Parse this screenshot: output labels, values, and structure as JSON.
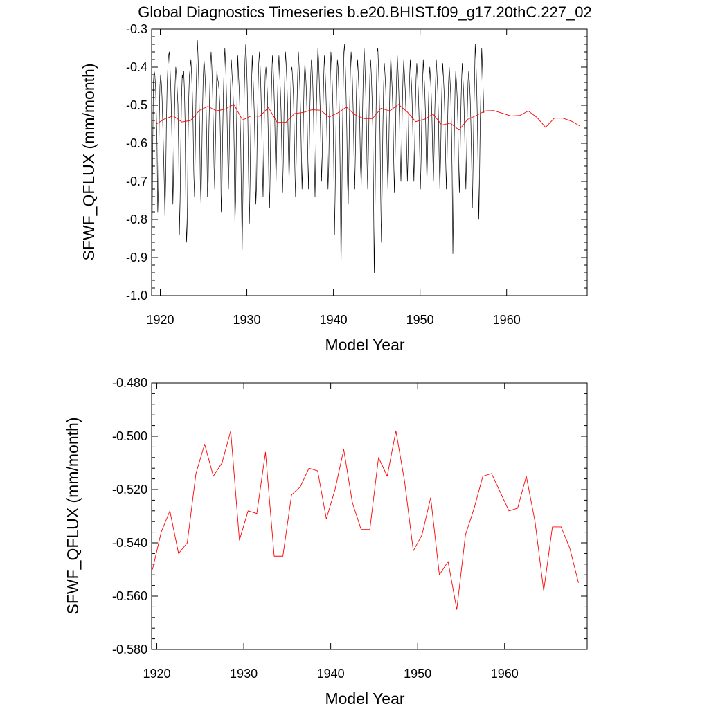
{
  "title": "Global Diagnostics Timeseries b.e20.BHIST.f09_g17.20thC.227_02",
  "chart_data": [
    {
      "type": "line",
      "xlabel": "Model Year",
      "ylabel": "SFWF_QFLUX (mm/month)",
      "xlim": [
        1919.0,
        1969.3
      ],
      "ylim": [
        -1.0,
        -0.3
      ],
      "xticks": [
        "1920",
        "1930",
        "1940",
        "1950",
        "1960"
      ],
      "yticks": [
        "-1.0",
        "-0.9",
        "-0.8",
        "-0.7",
        "-0.6",
        "-0.5",
        "-0.4",
        "-0.3"
      ],
      "grid": false,
      "series": [
        {
          "color": "#000000",
          "style": "monthly",
          "x_start": 1919.04,
          "x_step": 0.08333,
          "values": [
            -0.86,
            -0.62,
            -0.44,
            -0.41,
            -0.42,
            -0.45,
            -0.52,
            -0.6,
            -0.78,
            -0.72,
            -0.55,
            -0.45,
            -0.42,
            -0.44,
            -0.48,
            -0.55,
            -0.62,
            -0.7,
            -0.79,
            -0.7,
            -0.55,
            -0.45,
            -0.4,
            -0.37,
            -0.36,
            -0.4,
            -0.45,
            -0.52,
            -0.62,
            -0.76,
            -0.68,
            -0.55,
            -0.45,
            -0.4,
            -0.42,
            -0.46,
            -0.5,
            -0.62,
            -0.84,
            -0.75,
            -0.6,
            -0.48,
            -0.42,
            -0.43,
            -0.41,
            -0.46,
            -0.55,
            -0.78,
            -0.86,
            -0.8,
            -0.6,
            -0.48,
            -0.42,
            -0.4,
            -0.38,
            -0.42,
            -0.47,
            -0.55,
            -0.68,
            -0.74,
            -0.62,
            -0.48,
            -0.4,
            -0.33,
            -0.38,
            -0.45,
            -0.55,
            -0.7,
            -0.76,
            -0.65,
            -0.52,
            -0.43,
            -0.38,
            -0.4,
            -0.44,
            -0.5,
            -0.6,
            -0.74,
            -0.7,
            -0.56,
            -0.47,
            -0.39,
            -0.36,
            -0.4,
            -0.46,
            -0.55,
            -0.66,
            -0.72,
            -0.6,
            -0.48,
            -0.41,
            -0.43,
            -0.44,
            -0.46,
            -0.5,
            -0.6,
            -0.78,
            -0.72,
            -0.58,
            -0.47,
            -0.4,
            -0.35,
            -0.39,
            -0.45,
            -0.52,
            -0.63,
            -0.72,
            -0.64,
            -0.52,
            -0.44,
            -0.38,
            -0.42,
            -0.45,
            -0.5,
            -0.62,
            -0.81,
            -0.75,
            -0.58,
            -0.47,
            -0.37,
            -0.42,
            -0.46,
            -0.52,
            -0.6,
            -0.74,
            -0.88,
            -0.75,
            -0.58,
            -0.46,
            -0.38,
            -0.34,
            -0.38,
            -0.45,
            -0.55,
            -0.7,
            -0.81,
            -0.7,
            -0.55,
            -0.45,
            -0.37,
            -0.42,
            -0.47,
            -0.53,
            -0.63,
            -0.76,
            -0.71,
            -0.56,
            -0.46,
            -0.39,
            -0.36,
            -0.4,
            -0.46,
            -0.54,
            -0.66,
            -0.74,
            -0.63,
            -0.5,
            -0.42,
            -0.4,
            -0.43,
            -0.47,
            -0.56,
            -0.7,
            -0.77,
            -0.66,
            -0.52,
            -0.43,
            -0.37,
            -0.4,
            -0.45,
            -0.52,
            -0.62,
            -0.7,
            -0.6,
            -0.48,
            -0.41,
            -0.37,
            -0.42,
            -0.46,
            -0.52,
            -0.62,
            -0.73,
            -0.65,
            -0.52,
            -0.43,
            -0.36,
            -0.39,
            -0.44,
            -0.5,
            -0.6,
            -0.7,
            -0.63,
            -0.5,
            -0.41,
            -0.4,
            -0.43,
            -0.47,
            -0.55,
            -0.66,
            -0.74,
            -0.64,
            -0.5,
            -0.42,
            -0.36,
            -0.4,
            -0.45,
            -0.52,
            -0.62,
            -0.72,
            -0.65,
            -0.52,
            -0.43,
            -0.39,
            -0.42,
            -0.46,
            -0.53,
            -0.63,
            -0.72,
            -0.62,
            -0.5,
            -0.42,
            -0.38,
            -0.4,
            -0.45,
            -0.53,
            -0.65,
            -0.74,
            -0.64,
            -0.5,
            -0.42,
            -0.35,
            -0.38,
            -0.44,
            -0.5,
            -0.6,
            -0.7,
            -0.63,
            -0.52,
            -0.43,
            -0.37,
            -0.41,
            -0.46,
            -0.53,
            -0.63,
            -0.72,
            -0.66,
            -0.53,
            -0.44,
            -0.36,
            -0.39,
            -0.45,
            -0.52,
            -0.66,
            -0.84,
            -0.72,
            -0.56,
            -0.45,
            -0.38,
            -0.4,
            -0.46,
            -0.55,
            -0.7,
            -0.93,
            -0.78,
            -0.58,
            -0.46,
            -0.36,
            -0.34,
            -0.4,
            -0.47,
            -0.56,
            -0.7,
            -0.76,
            -0.63,
            -0.5,
            -0.41,
            -0.36,
            -0.39,
            -0.45,
            -0.52,
            -0.63,
            -0.72,
            -0.62,
            -0.5,
            -0.42,
            -0.38,
            -0.42,
            -0.47,
            -0.55,
            -0.66,
            -0.71,
            -0.62,
            -0.5,
            -0.41,
            -0.35,
            -0.39,
            -0.45,
            -0.53,
            -0.65,
            -0.72,
            -0.62,
            -0.5,
            -0.42,
            -0.38,
            -0.42,
            -0.48,
            -0.56,
            -0.72,
            -0.94,
            -0.8,
            -0.6,
            -0.46,
            -0.36,
            -0.35,
            -0.4,
            -0.47,
            -0.57,
            -0.74,
            -0.86,
            -0.72,
            -0.56,
            -0.45,
            -0.39,
            -0.42,
            -0.46,
            -0.54,
            -0.64,
            -0.72,
            -0.64,
            -0.52,
            -0.43,
            -0.37,
            -0.42,
            -0.46,
            -0.53,
            -0.64,
            -0.73,
            -0.64,
            -0.52,
            -0.43,
            -0.37,
            -0.41,
            -0.46,
            -0.53,
            -0.63,
            -0.7,
            -0.62,
            -0.5,
            -0.42,
            -0.38,
            -0.42,
            -0.46,
            -0.52,
            -0.62,
            -0.7,
            -0.62,
            -0.5,
            -0.43,
            -0.38,
            -0.42,
            -0.46,
            -0.52,
            -0.62,
            -0.7,
            -0.62,
            -0.51,
            -0.43,
            -0.39,
            -0.42,
            -0.46,
            -0.52,
            -0.62,
            -0.72,
            -0.64,
            -0.52,
            -0.44,
            -0.38,
            -0.42,
            -0.46,
            -0.52,
            -0.62,
            -0.7,
            -0.62,
            -0.51,
            -0.44,
            -0.4,
            -0.43,
            -0.47,
            -0.53,
            -0.62,
            -0.7,
            -0.62,
            -0.51,
            -0.44,
            -0.38,
            -0.42,
            -0.46,
            -0.53,
            -0.64,
            -0.72,
            -0.64,
            -0.52,
            -0.44,
            -0.39,
            -0.43,
            -0.47,
            -0.54,
            -0.64,
            -0.72,
            -0.64,
            -0.52,
            -0.44,
            -0.4,
            -0.43,
            -0.47,
            -0.55,
            -0.68,
            -0.89,
            -0.75,
            -0.58,
            -0.46,
            -0.41,
            -0.44,
            -0.48,
            -0.55,
            -0.65,
            -0.73,
            -0.64,
            -0.52,
            -0.44,
            -0.39,
            -0.43,
            -0.47,
            -0.54,
            -0.64,
            -0.72,
            -0.64,
            -0.52,
            -0.44,
            -0.41,
            -0.44,
            -0.48,
            -0.55,
            -0.65,
            -0.77,
            -0.66,
            -0.53,
            -0.44,
            -0.34,
            -0.38,
            -0.45,
            -0.54,
            -0.67,
            -0.8,
            -0.68,
            -0.54,
            -0.44,
            -0.35,
            -0.4,
            -0.46,
            -0.52
          ]
        },
        {
          "color": "#ff0000",
          "style": "annual",
          "x_start": 1919.5,
          "x_step": 1.0,
          "values": [
            -0.55,
            -0.536,
            -0.528,
            -0.544,
            -0.54,
            -0.514,
            -0.503,
            -0.515,
            -0.51,
            -0.498,
            -0.539,
            -0.528,
            -0.529,
            -0.506,
            -0.545,
            -0.545,
            -0.522,
            -0.519,
            -0.512,
            -0.513,
            -0.531,
            -0.52,
            -0.505,
            -0.525,
            -0.535,
            -0.535,
            -0.508,
            -0.515,
            -0.498,
            -0.517,
            -0.543,
            -0.537,
            -0.523,
            -0.552,
            -0.547,
            -0.565,
            -0.537,
            -0.527,
            -0.515,
            -0.514,
            -0.521,
            -0.528,
            -0.527,
            -0.515,
            -0.532,
            -0.558,
            -0.534,
            -0.534,
            -0.542,
            -0.555
          ]
        }
      ]
    },
    {
      "type": "line",
      "xlabel": "Model Year",
      "ylabel": "SFWF_QFLUX (mm/month)",
      "xlim": [
        1919.4,
        1969.5
      ],
      "ylim": [
        -0.58,
        -0.48
      ],
      "xticks": [
        "1920",
        "1930",
        "1940",
        "1950",
        "1960"
      ],
      "yticks": [
        "-0.580",
        "-0.560",
        "-0.540",
        "-0.520",
        "-0.500",
        "-0.480"
      ],
      "grid": false,
      "series": [
        {
          "color": "#ff0000",
          "style": "annual",
          "x_start": 1919.5,
          "x_step": 1.0,
          "values": [
            -0.55,
            -0.536,
            -0.528,
            -0.544,
            -0.54,
            -0.514,
            -0.503,
            -0.515,
            -0.51,
            -0.498,
            -0.539,
            -0.528,
            -0.529,
            -0.506,
            -0.545,
            -0.545,
            -0.522,
            -0.519,
            -0.512,
            -0.513,
            -0.531,
            -0.52,
            -0.505,
            -0.525,
            -0.535,
            -0.535,
            -0.508,
            -0.515,
            -0.498,
            -0.517,
            -0.543,
            -0.537,
            -0.523,
            -0.552,
            -0.547,
            -0.565,
            -0.537,
            -0.527,
            -0.515,
            -0.514,
            -0.521,
            -0.528,
            -0.527,
            -0.515,
            -0.532,
            -0.558,
            -0.534,
            -0.534,
            -0.542,
            -0.555
          ]
        }
      ]
    }
  ]
}
